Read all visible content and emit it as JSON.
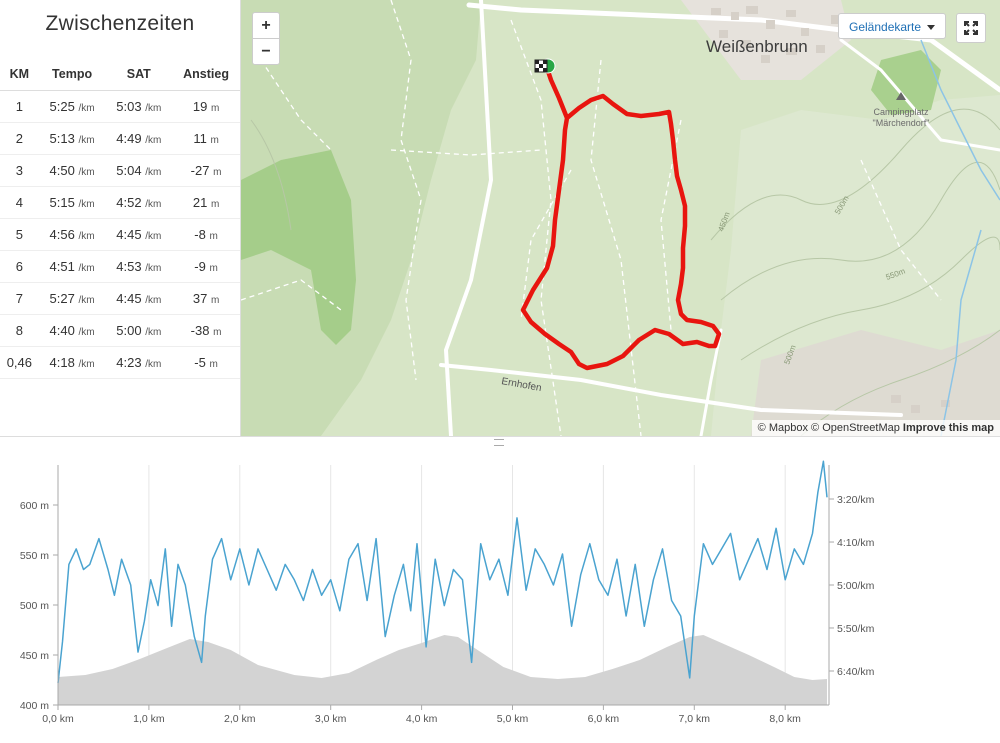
{
  "splits": {
    "title": "Zwischenzeiten",
    "headers": [
      "KM",
      "Tempo",
      "SAT",
      "Anstieg"
    ],
    "pace_unit": "/km",
    "elev_unit": "m",
    "rows": [
      {
        "km": "1",
        "tempo": "5:25",
        "sat": "5:03",
        "anstieg": "19"
      },
      {
        "km": "2",
        "tempo": "5:13",
        "sat": "4:49",
        "anstieg": "11"
      },
      {
        "km": "3",
        "tempo": "4:50",
        "sat": "5:04",
        "anstieg": "-27"
      },
      {
        "km": "4",
        "tempo": "5:15",
        "sat": "4:52",
        "anstieg": "21"
      },
      {
        "km": "5",
        "tempo": "4:56",
        "sat": "4:45",
        "anstieg": "-8"
      },
      {
        "km": "6",
        "tempo": "4:51",
        "sat": "4:53",
        "anstieg": "-9"
      },
      {
        "km": "7",
        "tempo": "5:27",
        "sat": "4:45",
        "anstieg": "37"
      },
      {
        "km": "8",
        "tempo": "4:40",
        "sat": "5:00",
        "anstieg": "-38"
      },
      {
        "km": "0,46",
        "tempo": "4:18",
        "sat": "4:23",
        "anstieg": "-5"
      }
    ]
  },
  "map": {
    "zoom_in": "+",
    "zoom_out": "−",
    "map_type": "Geländekarte",
    "town": "Weißenbrunn",
    "poi_line1": "Campingplatz",
    "poi_line2": "\"Märchendorf\"",
    "road": "Ernhofen",
    "contours": [
      "450m",
      "500m",
      "500m",
      "550m"
    ],
    "attribution": {
      "mapbox": "© Mapbox",
      "osm": "© OpenStreetMap",
      "improve": "Improve this map"
    },
    "colors": {
      "route": "#e8150f",
      "terrain": "#d8e6c7",
      "forest": "#b9d7a1"
    }
  },
  "chart_data": {
    "type": "line",
    "left_axis": {
      "ticks": [
        "400 m",
        "450 m",
        "500 m",
        "550 m",
        "600 m"
      ],
      "ylim": [
        400,
        640
      ]
    },
    "right_axis": {
      "ticks": [
        "3:20/km",
        "4:10/km",
        "5:00/km",
        "5:50/km",
        "6:40/km"
      ],
      "note": "pace, inverted"
    },
    "x_ticks": [
      "0,0 km",
      "1,0 km",
      "2,0 km",
      "3,0 km",
      "4,0 km",
      "5,0 km",
      "6,0 km",
      "7,0 km",
      "8,0 km"
    ],
    "xlim": [
      0,
      8.46
    ],
    "series": [
      {
        "kind": "elevation-area",
        "color": "#d3d3d3",
        "x": [
          0,
          0.3,
          0.6,
          0.9,
          1.2,
          1.45,
          1.65,
          1.9,
          2.2,
          2.6,
          2.9,
          3.2,
          3.5,
          3.75,
          4.0,
          4.25,
          4.4,
          4.6,
          4.9,
          5.2,
          5.5,
          5.8,
          6.1,
          6.4,
          6.7,
          6.95,
          7.1,
          7.3,
          7.6,
          7.9,
          8.1,
          8.3,
          8.46
        ],
        "y": [
          428,
          430,
          436,
          446,
          457,
          466,
          463,
          455,
          440,
          430,
          427,
          432,
          445,
          455,
          462,
          470,
          468,
          456,
          438,
          428,
          426,
          428,
          436,
          445,
          458,
          468,
          470,
          462,
          450,
          437,
          428,
          425,
          426
        ]
      },
      {
        "kind": "pace-line",
        "color": "#4aa3d0",
        "x": [
          0,
          0.05,
          0.12,
          0.2,
          0.28,
          0.35,
          0.45,
          0.55,
          0.62,
          0.7,
          0.8,
          0.88,
          0.95,
          1.02,
          1.1,
          1.18,
          1.25,
          1.32,
          1.4,
          1.5,
          1.58,
          1.62,
          1.7,
          1.8,
          1.9,
          2.0,
          2.1,
          2.2,
          2.3,
          2.4,
          2.5,
          2.6,
          2.7,
          2.8,
          2.9,
          3.0,
          3.1,
          3.2,
          3.3,
          3.4,
          3.5,
          3.6,
          3.7,
          3.8,
          3.88,
          3.95,
          4.05,
          4.15,
          4.25,
          4.35,
          4.45,
          4.55,
          4.65,
          4.75,
          4.85,
          4.95,
          5.05,
          5.15,
          5.25,
          5.35,
          5.45,
          5.55,
          5.65,
          5.75,
          5.85,
          5.95,
          6.05,
          6.15,
          6.25,
          6.35,
          6.45,
          6.55,
          6.65,
          6.75,
          6.85,
          6.95,
          7.0,
          7.1,
          7.2,
          7.3,
          7.4,
          7.5,
          7.6,
          7.7,
          7.8,
          7.9,
          8.0,
          8.1,
          8.2,
          8.3,
          8.36,
          8.42,
          8.46
        ],
        "y": [
          6.9,
          6.1,
          4.6,
          4.3,
          4.7,
          4.6,
          4.1,
          4.7,
          5.2,
          4.5,
          5.0,
          6.3,
          5.7,
          4.9,
          5.4,
          4.3,
          5.8,
          4.6,
          5.0,
          6.0,
          6.5,
          5.6,
          4.5,
          4.1,
          4.9,
          4.3,
          5.0,
          4.3,
          4.7,
          5.1,
          4.6,
          4.9,
          5.3,
          4.7,
          5.2,
          4.9,
          5.5,
          4.5,
          4.2,
          5.3,
          4.1,
          6.0,
          5.2,
          4.6,
          5.5,
          4.2,
          6.2,
          4.5,
          5.4,
          4.7,
          4.9,
          6.5,
          4.2,
          4.9,
          4.5,
          5.2,
          3.7,
          5.1,
          4.3,
          4.6,
          5.0,
          4.4,
          5.8,
          4.8,
          4.2,
          4.9,
          5.2,
          4.5,
          5.6,
          4.6,
          5.8,
          4.9,
          4.3,
          5.3,
          5.6,
          6.8,
          5.6,
          4.2,
          4.6,
          4.3,
          4.0,
          4.9,
          4.5,
          4.1,
          4.7,
          3.9,
          4.9,
          4.3,
          4.6,
          4.0,
          3.2,
          2.6,
          3.3
        ]
      }
    ]
  }
}
